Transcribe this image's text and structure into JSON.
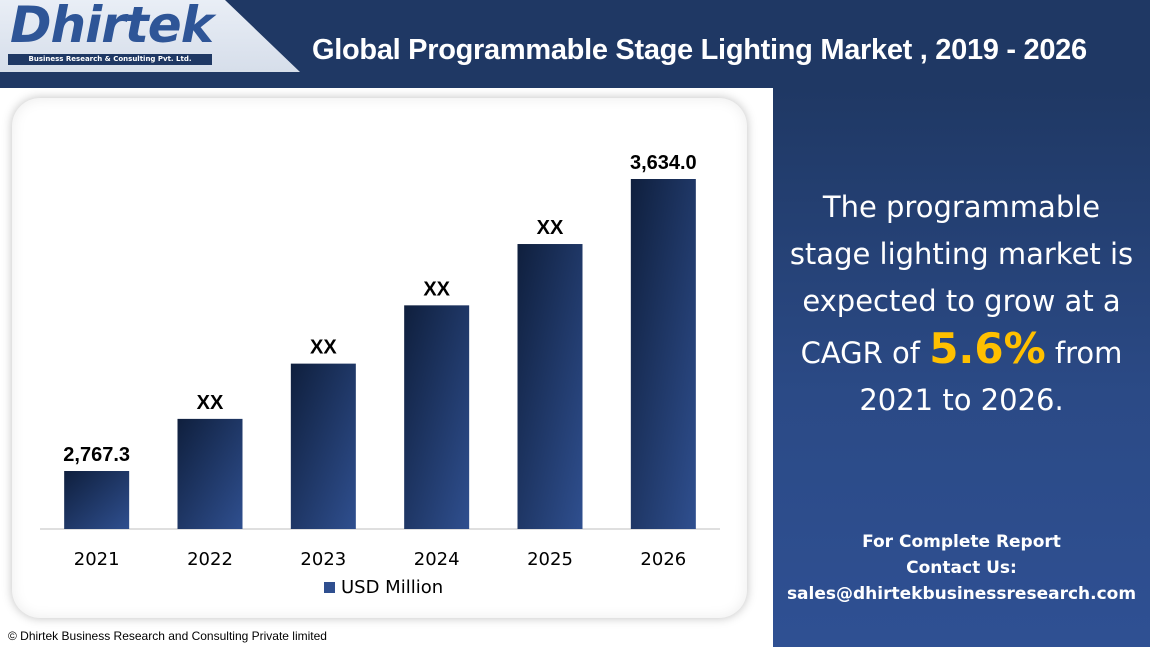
{
  "header": {
    "logo_text": "Dhirtek",
    "logo_subtitle": "Business Research & Consulting Pvt. Ltd.",
    "title": "Global Programmable Stage Lighting Market , 2019 - 2026"
  },
  "side_panel": {
    "line1": "The programmable",
    "line2": "stage lighting market is",
    "line3": "expected to grow at a",
    "line4_prefix": "CAGR of",
    "cagr": "5.6%",
    "line4_suffix": "from",
    "line5": "2021 to 2026.",
    "contact_line1": "For Complete Report",
    "contact_line2": "Contact Us:",
    "email": "sales@dhirtekbusinessresearch.com"
  },
  "colors": {
    "header_bg": "#1f3864",
    "bar_dark": "#0f1f3d",
    "bar_light": "#2f4f8f",
    "highlight": "#ffc000"
  },
  "chart_data": {
    "type": "bar",
    "categories": [
      "2021",
      "2022",
      "2023",
      "2024",
      "2025",
      "2026"
    ],
    "series": [
      {
        "name": "USD Million",
        "values": [
          2767.3,
          2922,
          3086,
          3259,
          3441,
          3634.0
        ],
        "labels": [
          "2,767.3",
          "XX",
          "XX",
          "XX",
          "XX",
          "3,634.0"
        ]
      }
    ],
    "legend": "bottom-center",
    "grid": false
  },
  "footer": "© Dhirtek Business Research and Consulting Private limited"
}
